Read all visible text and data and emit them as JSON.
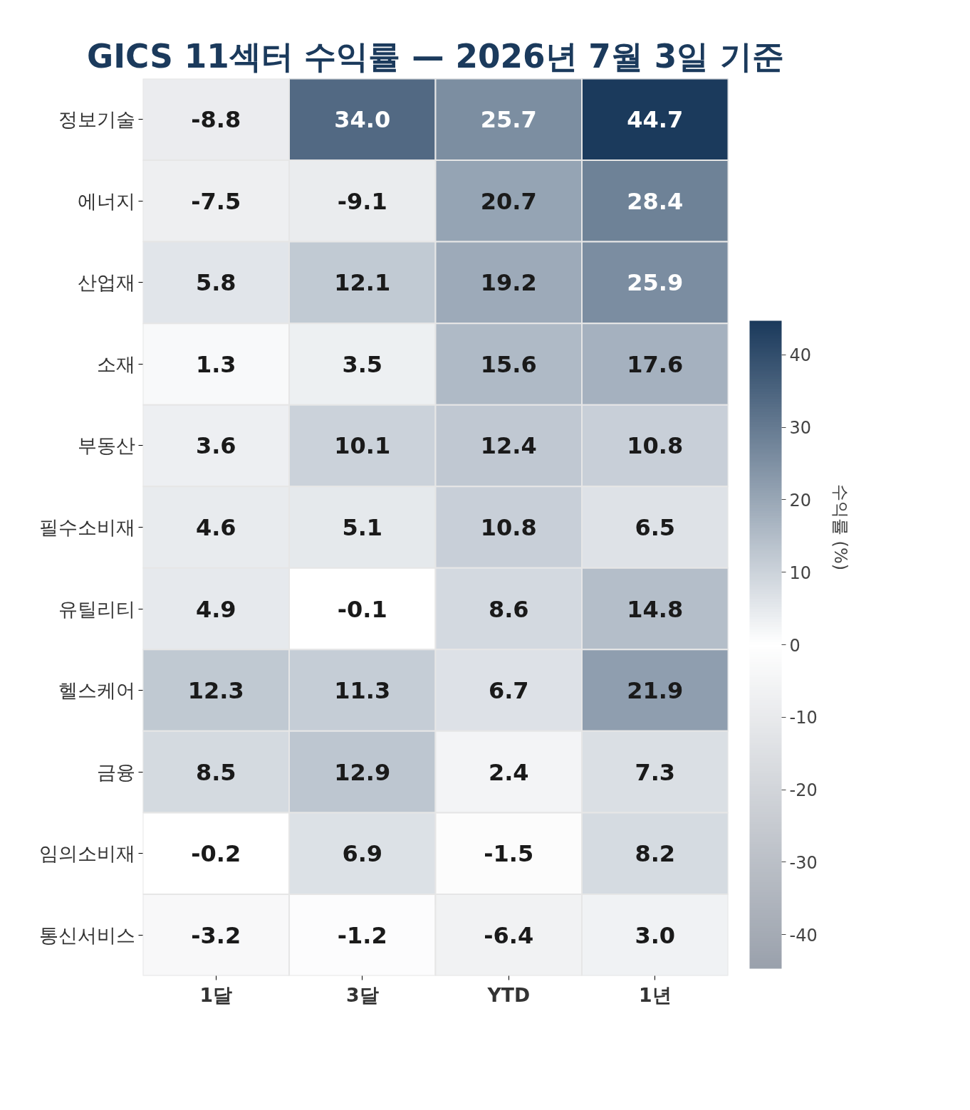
{
  "chart_data": {
    "type": "heatmap",
    "title": "GICS 11섹터 수익률 — 2026년 7월 3일 기준",
    "categories": [
      "1달",
      "3달",
      "YTD",
      "1년"
    ],
    "y_categories": [
      "정보기술",
      "에너지",
      "산업재",
      "소재",
      "부동산",
      "필수소비재",
      "유틸리티",
      "헬스케어",
      "금융",
      "임의소비재",
      "통신서비스"
    ],
    "cells": [
      [
        -8.8,
        34.0,
        25.7,
        44.7
      ],
      [
        -7.5,
        -9.1,
        20.7,
        28.4
      ],
      [
        5.8,
        12.1,
        19.2,
        25.9
      ],
      [
        1.3,
        3.5,
        15.6,
        17.6
      ],
      [
        3.6,
        10.1,
        12.4,
        10.8
      ],
      [
        4.6,
        5.1,
        10.8,
        6.5
      ],
      [
        4.9,
        -0.1,
        8.6,
        14.8
      ],
      [
        12.3,
        11.3,
        6.7,
        21.9
      ],
      [
        8.5,
        12.9,
        2.4,
        7.3
      ],
      [
        -0.2,
        6.9,
        -1.5,
        8.2
      ],
      [
        -3.2,
        -1.2,
        -6.4,
        3.0
      ]
    ],
    "cell_labels": [
      [
        "-8.8",
        "34.0",
        "25.7",
        "44.7"
      ],
      [
        "-7.5",
        "-9.1",
        "20.7",
        "28.4"
      ],
      [
        "5.8",
        "12.1",
        "19.2",
        "25.9"
      ],
      [
        "1.3",
        "3.5",
        "15.6",
        "17.6"
      ],
      [
        "3.6",
        "10.1",
        "12.4",
        "10.8"
      ],
      [
        "4.6",
        "5.1",
        "10.8",
        "6.5"
      ],
      [
        "4.9",
        "-0.1",
        "8.6",
        "14.8"
      ],
      [
        "12.3",
        "11.3",
        "6.7",
        "21.9"
      ],
      [
        "8.5",
        "12.9",
        "2.4",
        "7.3"
      ],
      [
        "-0.2",
        "6.9",
        "-1.5",
        "8.2"
      ],
      [
        "-3.2",
        "-1.2",
        "-6.4",
        "3.0"
      ]
    ],
    "clabel": "수익률 (%)",
    "clim": [
      -44.7,
      44.7
    ],
    "cticks": [
      -40,
      -30,
      -20,
      -10,
      0,
      10,
      20,
      30,
      40
    ]
  }
}
